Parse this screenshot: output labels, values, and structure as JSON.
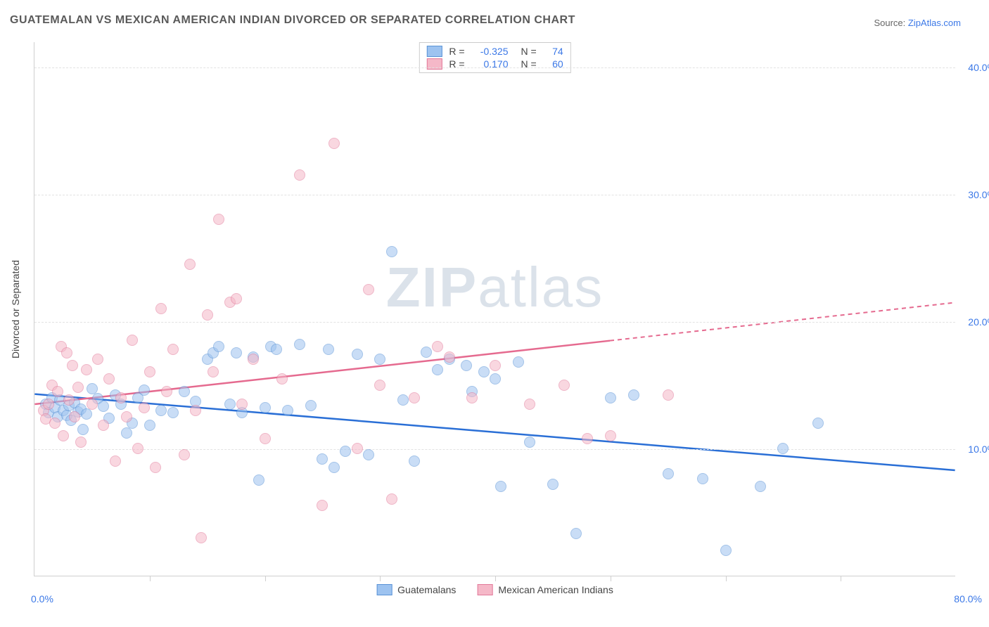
{
  "title": "GUATEMALAN VS MEXICAN AMERICAN INDIAN DIVORCED OR SEPARATED CORRELATION CHART",
  "source_prefix": "Source: ",
  "source_link": "ZipAtlas.com",
  "ylabel": "Divorced or Separated",
  "watermark_bold": "ZIP",
  "watermark_rest": "atlas",
  "chart": {
    "type": "scatter",
    "xlim": [
      0,
      80
    ],
    "ylim": [
      0,
      42
    ],
    "x_origin_label": "0.0%",
    "x_end_label": "80.0%",
    "xticks": [
      10,
      20,
      30,
      40,
      50,
      60,
      70
    ],
    "yticks": [
      10,
      20,
      30,
      40
    ],
    "ytick_labels": [
      "10.0%",
      "20.0%",
      "30.0%",
      "40.0%"
    ],
    "background_color": "#ffffff",
    "grid_color": "#e2e2e2",
    "axis_color": "#cfcfcf",
    "point_radius": 8,
    "point_opacity": 0.55
  },
  "series": [
    {
      "name": "Guatemalans",
      "label": "Guatemalans",
      "fill_color": "#9dc3f0",
      "stroke_color": "#5a93d6",
      "line_color": "#2a6fd6",
      "R": "-0.325",
      "N": "74",
      "trend": {
        "x1": 0,
        "y1": 14.3,
        "x2": 80,
        "y2": 8.3,
        "dash_from_x": null
      },
      "points": [
        [
          1.0,
          13.5
        ],
        [
          1.2,
          12.8
        ],
        [
          1.5,
          14.0
        ],
        [
          1.8,
          13.2
        ],
        [
          2.0,
          12.5
        ],
        [
          2.2,
          13.8
        ],
        [
          2.5,
          13.0
        ],
        [
          2.8,
          12.6
        ],
        [
          3.0,
          13.4
        ],
        [
          3.2,
          12.2
        ],
        [
          3.5,
          13.6
        ],
        [
          3.8,
          12.9
        ],
        [
          4.0,
          13.1
        ],
        [
          4.2,
          11.5
        ],
        [
          4.5,
          12.7
        ],
        [
          5.0,
          14.7
        ],
        [
          5.5,
          13.9
        ],
        [
          6.0,
          13.3
        ],
        [
          6.5,
          12.4
        ],
        [
          7.0,
          14.2
        ],
        [
          7.5,
          13.5
        ],
        [
          8.0,
          11.2
        ],
        [
          8.5,
          12.0
        ],
        [
          9.0,
          14.0
        ],
        [
          9.5,
          14.6
        ],
        [
          10.0,
          11.8
        ],
        [
          11.0,
          13.0
        ],
        [
          12.0,
          12.8
        ],
        [
          13.0,
          14.5
        ],
        [
          14.0,
          13.7
        ],
        [
          15.0,
          17.0
        ],
        [
          15.5,
          17.5
        ],
        [
          16.0,
          18.0
        ],
        [
          17.0,
          13.5
        ],
        [
          17.5,
          17.5
        ],
        [
          18.0,
          12.8
        ],
        [
          19.0,
          17.2
        ],
        [
          19.5,
          7.5
        ],
        [
          20.0,
          13.2
        ],
        [
          20.5,
          18.0
        ],
        [
          21.0,
          17.8
        ],
        [
          22.0,
          13.0
        ],
        [
          23.0,
          18.2
        ],
        [
          24.0,
          13.4
        ],
        [
          25.0,
          9.2
        ],
        [
          25.5,
          17.8
        ],
        [
          26.0,
          8.5
        ],
        [
          27.0,
          9.8
        ],
        [
          28.0,
          17.4
        ],
        [
          29.0,
          9.5
        ],
        [
          30.0,
          17.0
        ],
        [
          31.0,
          25.5
        ],
        [
          32.0,
          13.8
        ],
        [
          33.0,
          9.0
        ],
        [
          34.0,
          17.6
        ],
        [
          35.0,
          16.2
        ],
        [
          36.0,
          17.0
        ],
        [
          37.5,
          16.5
        ],
        [
          38.0,
          14.5
        ],
        [
          39.0,
          16.0
        ],
        [
          40.0,
          15.5
        ],
        [
          40.5,
          7.0
        ],
        [
          42.0,
          16.8
        ],
        [
          43.0,
          10.5
        ],
        [
          45.0,
          7.2
        ],
        [
          47.0,
          3.3
        ],
        [
          50.0,
          14.0
        ],
        [
          52.0,
          14.2
        ],
        [
          55.0,
          8.0
        ],
        [
          58.0,
          7.6
        ],
        [
          60.0,
          2.0
        ],
        [
          63.0,
          7.0
        ],
        [
          65.0,
          10.0
        ],
        [
          68.0,
          12.0
        ]
      ]
    },
    {
      "name": "Mexican American Indians",
      "label": "Mexican American Indians",
      "fill_color": "#f5b8c8",
      "stroke_color": "#e27a9a",
      "line_color": "#e56a8f",
      "R": "0.170",
      "N": "60",
      "trend": {
        "x1": 0,
        "y1": 13.5,
        "x2": 80,
        "y2": 21.5,
        "dash_from_x": 50
      },
      "points": [
        [
          0.8,
          13.0
        ],
        [
          1.0,
          12.3
        ],
        [
          1.2,
          13.5
        ],
        [
          1.5,
          15.0
        ],
        [
          1.8,
          12.0
        ],
        [
          2.0,
          14.5
        ],
        [
          2.3,
          18.0
        ],
        [
          2.5,
          11.0
        ],
        [
          2.8,
          17.5
        ],
        [
          3.0,
          13.8
        ],
        [
          3.3,
          16.5
        ],
        [
          3.5,
          12.5
        ],
        [
          3.8,
          14.8
        ],
        [
          4.0,
          10.5
        ],
        [
          4.5,
          16.2
        ],
        [
          5.0,
          13.5
        ],
        [
          5.5,
          17.0
        ],
        [
          6.0,
          11.8
        ],
        [
          6.5,
          15.5
        ],
        [
          7.0,
          9.0
        ],
        [
          7.5,
          14.0
        ],
        [
          8.0,
          12.5
        ],
        [
          8.5,
          18.5
        ],
        [
          9.0,
          10.0
        ],
        [
          9.5,
          13.2
        ],
        [
          10.0,
          16.0
        ],
        [
          10.5,
          8.5
        ],
        [
          11.0,
          21.0
        ],
        [
          11.5,
          14.5
        ],
        [
          12.0,
          17.8
        ],
        [
          13.0,
          9.5
        ],
        [
          13.5,
          24.5
        ],
        [
          14.0,
          13.0
        ],
        [
          14.5,
          3.0
        ],
        [
          15.0,
          20.5
        ],
        [
          15.5,
          16.0
        ],
        [
          16.0,
          28.0
        ],
        [
          17.0,
          21.5
        ],
        [
          17.5,
          21.8
        ],
        [
          18.0,
          13.5
        ],
        [
          19.0,
          17.0
        ],
        [
          20.0,
          10.8
        ],
        [
          21.5,
          15.5
        ],
        [
          23.0,
          31.5
        ],
        [
          25.0,
          5.5
        ],
        [
          26.0,
          34.0
        ],
        [
          28.0,
          10.0
        ],
        [
          29.0,
          22.5
        ],
        [
          30.0,
          15.0
        ],
        [
          31.0,
          6.0
        ],
        [
          33.0,
          14.0
        ],
        [
          35.0,
          18.0
        ],
        [
          36.0,
          17.2
        ],
        [
          38.0,
          14.0
        ],
        [
          40.0,
          16.5
        ],
        [
          43.0,
          13.5
        ],
        [
          46.0,
          15.0
        ],
        [
          48.0,
          10.8
        ],
        [
          50.0,
          11.0
        ],
        [
          55.0,
          14.2
        ]
      ]
    }
  ],
  "legend_top": {
    "r_label": "R =",
    "n_label": "N ="
  }
}
